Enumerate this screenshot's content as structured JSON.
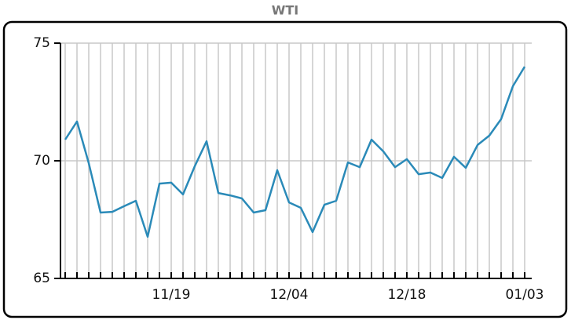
{
  "chart_data": {
    "type": "line",
    "title": "WTI",
    "categories": [
      null,
      null,
      null,
      null,
      null,
      null,
      null,
      null,
      null,
      "11/19",
      null,
      null,
      null,
      null,
      null,
      null,
      null,
      null,
      null,
      "12/04",
      null,
      null,
      null,
      null,
      null,
      null,
      null,
      null,
      null,
      "12/18",
      null,
      null,
      null,
      null,
      null,
      null,
      null,
      null,
      null,
      "01/03"
    ],
    "values": [
      70.9,
      71.67,
      69.9,
      67.8,
      67.83,
      68.07,
      68.3,
      66.77,
      69.03,
      69.07,
      68.57,
      69.77,
      70.83,
      68.63,
      68.53,
      68.4,
      67.8,
      67.9,
      69.6,
      68.23,
      68.0,
      66.97,
      68.13,
      68.3,
      69.93,
      69.73,
      70.9,
      70.4,
      69.73,
      70.07,
      69.43,
      69.5,
      69.27,
      70.17,
      69.7,
      70.67,
      71.07,
      71.77,
      73.17,
      74.0
    ],
    "color": "#2a8ab8",
    "ylim": [
      65,
      75
    ],
    "yticks": [
      65,
      70,
      75
    ],
    "grid": true
  }
}
